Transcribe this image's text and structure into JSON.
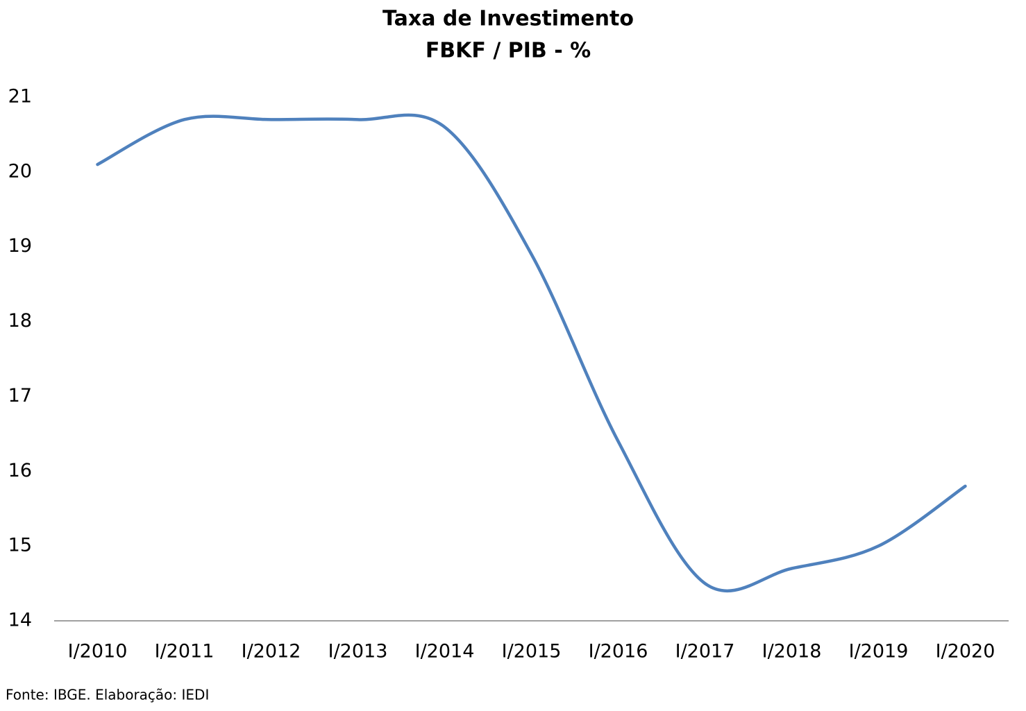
{
  "chart_data": {
    "type": "line",
    "title": "Taxa de Investimento",
    "subtitle": "FBKF / PIB - %",
    "categories": [
      "I/2010",
      "I/2011",
      "I/2012",
      "I/2013",
      "I/2014",
      "I/2015",
      "I/2016",
      "I/2017",
      "I/2018",
      "I/2019",
      "I/2020"
    ],
    "series": [
      {
        "name": "FBKF / PIB",
        "color": "#4f81bd",
        "values": [
          20.1,
          20.7,
          20.7,
          20.7,
          20.6,
          18.9,
          16.4,
          14.5,
          14.7,
          15.0,
          15.8
        ]
      }
    ],
    "ylim": [
      14,
      21
    ],
    "yticks": [
      14,
      15,
      16,
      17,
      18,
      19,
      20,
      21
    ],
    "grid": false,
    "smooth": true,
    "source": "Fonte: IBGE. Elaboração: IEDI"
  }
}
